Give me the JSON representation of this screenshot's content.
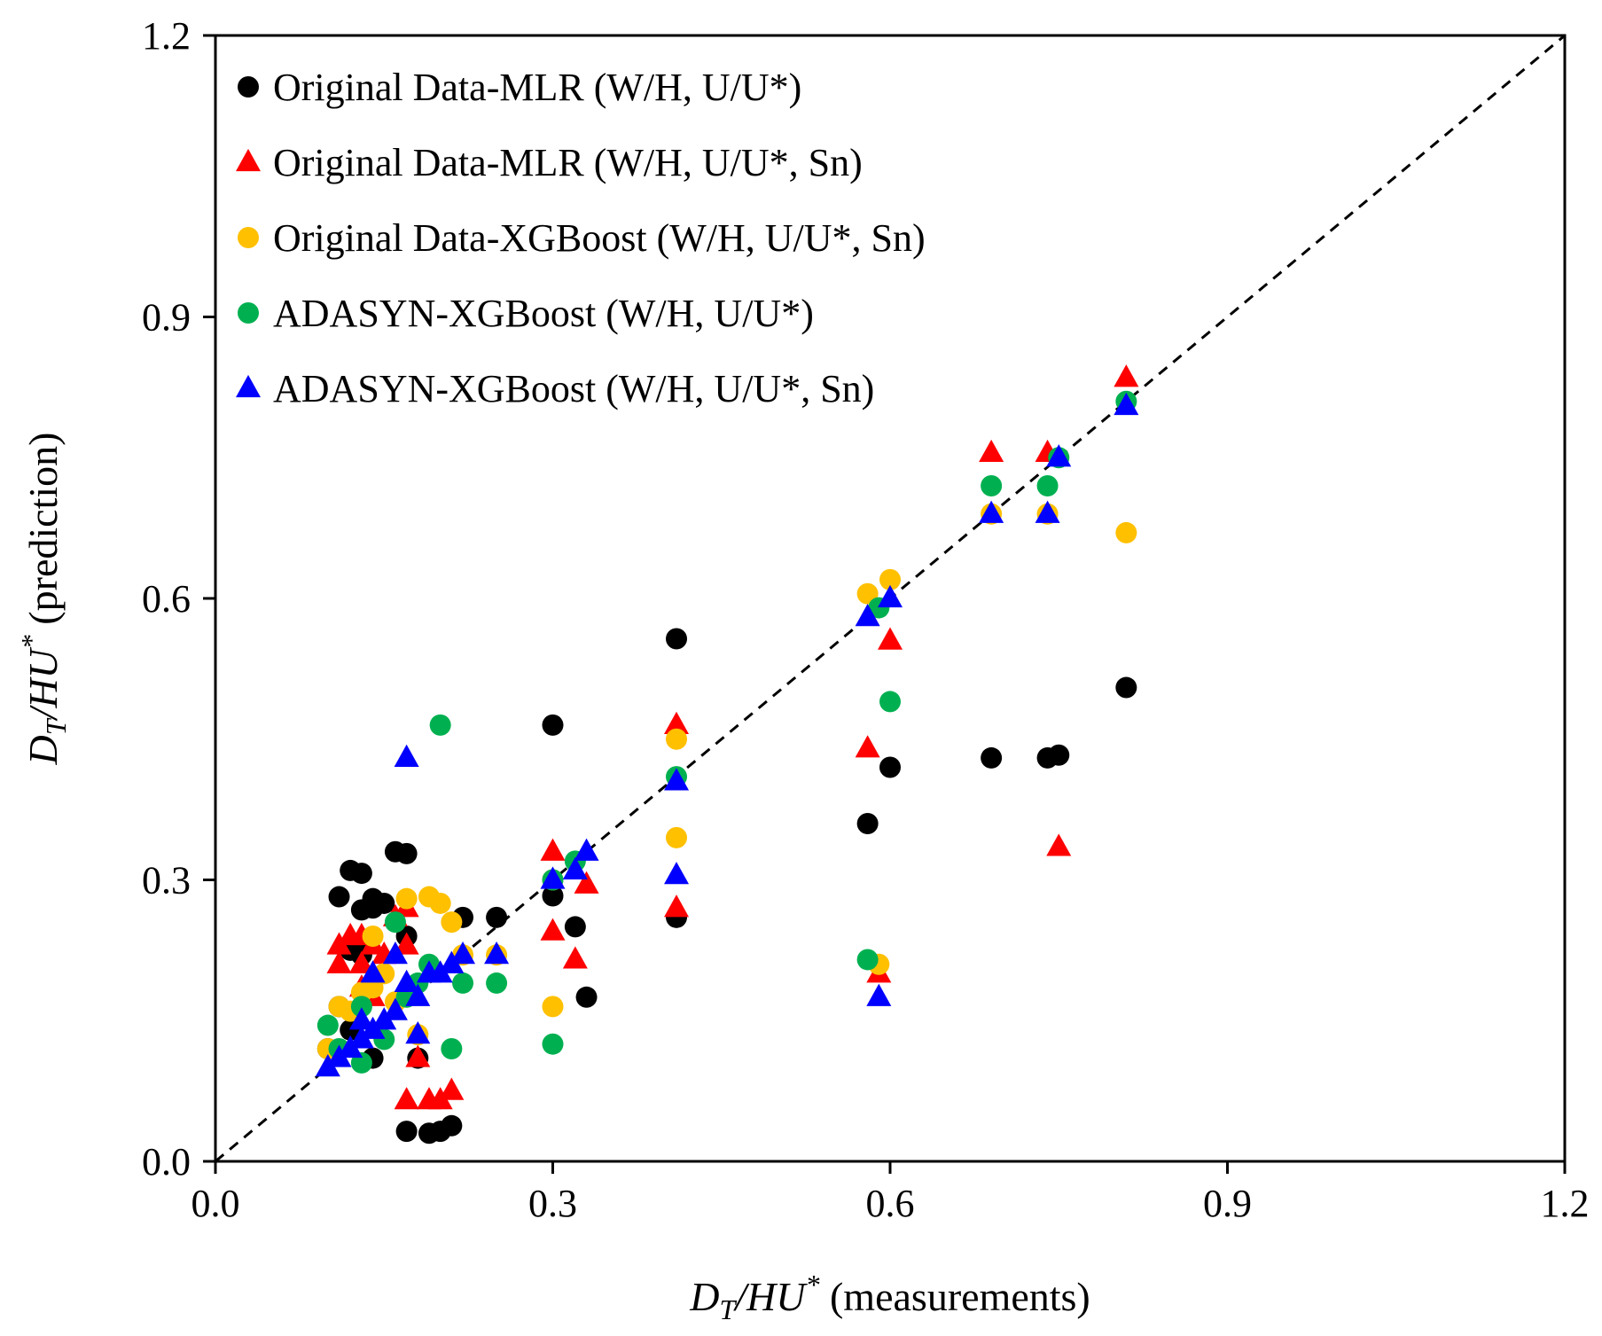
{
  "chart_data": {
    "type": "scatter",
    "title": "",
    "xlabel": {
      "d": "D",
      "sub": "T",
      "mid": "/HU",
      "sup": "*",
      "rest": " (measurements)"
    },
    "ylabel": {
      "d": "D",
      "sub": "T",
      "mid": "/HU",
      "sup": "*",
      "rest": " (prediction)"
    },
    "xlim": [
      0.0,
      1.2
    ],
    "ylim": [
      0.0,
      1.2
    ],
    "xticks": [
      "0.0",
      "0.3",
      "0.6",
      "0.9",
      "1.2"
    ],
    "yticks": [
      "0.0",
      "0.3",
      "0.6",
      "0.9",
      "1.2"
    ],
    "grid": false,
    "legend_position": "top-left",
    "reference_line": {
      "style": "dashed",
      "color": "#000000",
      "from": [
        0,
        0
      ],
      "to": [
        1.2,
        1.2
      ]
    },
    "series": [
      {
        "name": "Original Data-MLR (W/H, U/U*)",
        "marker": "circle",
        "color": "#000000",
        "points": [
          [
            0.11,
            0.282
          ],
          [
            0.12,
            0.31
          ],
          [
            0.13,
            0.307
          ],
          [
            0.13,
            0.268
          ],
          [
            0.14,
            0.27
          ],
          [
            0.14,
            0.28
          ],
          [
            0.15,
            0.275
          ],
          [
            0.16,
            0.33
          ],
          [
            0.17,
            0.328
          ],
          [
            0.17,
            0.24
          ],
          [
            0.12,
            0.225
          ],
          [
            0.13,
            0.22
          ],
          [
            0.11,
            0.165
          ],
          [
            0.12,
            0.14
          ],
          [
            0.1,
            0.12
          ],
          [
            0.14,
            0.11
          ],
          [
            0.18,
            0.11
          ],
          [
            0.17,
            0.032
          ],
          [
            0.19,
            0.03
          ],
          [
            0.2,
            0.032
          ],
          [
            0.21,
            0.038
          ],
          [
            0.22,
            0.26
          ],
          [
            0.25,
            0.26
          ],
          [
            0.3,
            0.465
          ],
          [
            0.3,
            0.283
          ],
          [
            0.32,
            0.25
          ],
          [
            0.33,
            0.175
          ],
          [
            0.41,
            0.557
          ],
          [
            0.41,
            0.26
          ],
          [
            0.58,
            0.36
          ],
          [
            0.6,
            0.42
          ],
          [
            0.69,
            0.43
          ],
          [
            0.74,
            0.43
          ],
          [
            0.75,
            0.433
          ],
          [
            0.81,
            0.505
          ]
        ]
      },
      {
        "name": "Original Data-MLR (W/H, U/U*, Sn)",
        "marker": "triangle",
        "color": "#ff0000",
        "points": [
          [
            0.11,
            0.23
          ],
          [
            0.11,
            0.21
          ],
          [
            0.12,
            0.24
          ],
          [
            0.13,
            0.24
          ],
          [
            0.13,
            0.21
          ],
          [
            0.14,
            0.23
          ],
          [
            0.15,
            0.22
          ],
          [
            0.16,
            0.26
          ],
          [
            0.17,
            0.27
          ],
          [
            0.17,
            0.23
          ],
          [
            0.13,
            0.185
          ],
          [
            0.14,
            0.175
          ],
          [
            0.17,
            0.065
          ],
          [
            0.19,
            0.065
          ],
          [
            0.2,
            0.065
          ],
          [
            0.21,
            0.075
          ],
          [
            0.18,
            0.11
          ],
          [
            0.3,
            0.33
          ],
          [
            0.3,
            0.245
          ],
          [
            0.32,
            0.215
          ],
          [
            0.33,
            0.295
          ],
          [
            0.41,
            0.465
          ],
          [
            0.41,
            0.27
          ],
          [
            0.58,
            0.44
          ],
          [
            0.59,
            0.2
          ],
          [
            0.6,
            0.555
          ],
          [
            0.69,
            0.755
          ],
          [
            0.74,
            0.755
          ],
          [
            0.75,
            0.335
          ],
          [
            0.81,
            0.835
          ]
        ]
      },
      {
        "name": "Original Data-XGBoost (W/H, U/U*, Sn)",
        "marker": "circle",
        "color": "#ffc000",
        "points": [
          [
            0.1,
            0.12
          ],
          [
            0.11,
            0.165
          ],
          [
            0.12,
            0.16
          ],
          [
            0.13,
            0.18
          ],
          [
            0.14,
            0.185
          ],
          [
            0.14,
            0.24
          ],
          [
            0.15,
            0.2
          ],
          [
            0.17,
            0.28
          ],
          [
            0.19,
            0.282
          ],
          [
            0.2,
            0.275
          ],
          [
            0.21,
            0.255
          ],
          [
            0.22,
            0.22
          ],
          [
            0.25,
            0.22
          ],
          [
            0.18,
            0.135
          ],
          [
            0.16,
            0.17
          ],
          [
            0.3,
            0.165
          ],
          [
            0.3,
            0.3
          ],
          [
            0.41,
            0.45
          ],
          [
            0.41,
            0.345
          ],
          [
            0.58,
            0.605
          ],
          [
            0.59,
            0.21
          ],
          [
            0.6,
            0.62
          ],
          [
            0.69,
            0.69
          ],
          [
            0.74,
            0.69
          ],
          [
            0.81,
            0.67
          ]
        ]
      },
      {
        "name": "ADASYN-XGBoost (W/H, U/U*)",
        "marker": "circle",
        "color": "#00b050",
        "points": [
          [
            0.1,
            0.145
          ],
          [
            0.11,
            0.12
          ],
          [
            0.13,
            0.165
          ],
          [
            0.13,
            0.105
          ],
          [
            0.15,
            0.13
          ],
          [
            0.16,
            0.255
          ],
          [
            0.17,
            0.175
          ],
          [
            0.18,
            0.19
          ],
          [
            0.19,
            0.21
          ],
          [
            0.2,
            0.465
          ],
          [
            0.21,
            0.12
          ],
          [
            0.22,
            0.19
          ],
          [
            0.25,
            0.19
          ],
          [
            0.3,
            0.125
          ],
          [
            0.3,
            0.3
          ],
          [
            0.32,
            0.32
          ],
          [
            0.41,
            0.41
          ],
          [
            0.58,
            0.215
          ],
          [
            0.59,
            0.59
          ],
          [
            0.6,
            0.49
          ],
          [
            0.69,
            0.72
          ],
          [
            0.74,
            0.72
          ],
          [
            0.75,
            0.75
          ],
          [
            0.81,
            0.81
          ]
        ]
      },
      {
        "name": "ADASYN-XGBoost (W/H, U/U*, Sn)",
        "marker": "triangle",
        "color": "#0000ff",
        "points": [
          [
            0.1,
            0.1
          ],
          [
            0.11,
            0.11
          ],
          [
            0.12,
            0.12
          ],
          [
            0.13,
            0.15
          ],
          [
            0.13,
            0.13
          ],
          [
            0.14,
            0.14
          ],
          [
            0.14,
            0.2
          ],
          [
            0.15,
            0.15
          ],
          [
            0.16,
            0.16
          ],
          [
            0.16,
            0.22
          ],
          [
            0.17,
            0.43
          ],
          [
            0.17,
            0.19
          ],
          [
            0.18,
            0.135
          ],
          [
            0.18,
            0.175
          ],
          [
            0.19,
            0.2
          ],
          [
            0.2,
            0.2
          ],
          [
            0.21,
            0.21
          ],
          [
            0.22,
            0.22
          ],
          [
            0.25,
            0.22
          ],
          [
            0.3,
            0.3
          ],
          [
            0.32,
            0.31
          ],
          [
            0.33,
            0.33
          ],
          [
            0.41,
            0.305
          ],
          [
            0.41,
            0.405
          ],
          [
            0.58,
            0.58
          ],
          [
            0.59,
            0.175
          ],
          [
            0.6,
            0.6
          ],
          [
            0.69,
            0.69
          ],
          [
            0.74,
            0.69
          ],
          [
            0.75,
            0.75
          ],
          [
            0.81,
            0.805
          ]
        ]
      }
    ]
  }
}
